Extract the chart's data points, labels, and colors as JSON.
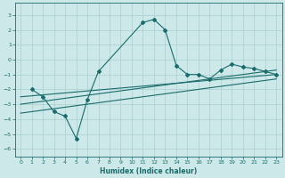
{
  "title": "",
  "xlabel": "Humidex (Indice chaleur)",
  "bg_color": "#cce8e8",
  "grid_color": "#aacfcf",
  "line_color": "#1a6b6b",
  "xlim": [
    -0.5,
    23.5
  ],
  "ylim": [
    -6.5,
    3.8
  ],
  "xticks": [
    0,
    1,
    2,
    3,
    4,
    5,
    6,
    7,
    8,
    9,
    10,
    11,
    12,
    13,
    14,
    15,
    16,
    17,
    18,
    19,
    20,
    21,
    22,
    23
  ],
  "yticks": [
    -6,
    -5,
    -4,
    -3,
    -2,
    -1,
    0,
    1,
    2,
    3
  ],
  "line1_x": [
    1,
    2,
    3,
    4,
    5,
    6,
    7,
    11,
    12,
    13,
    14,
    15,
    16,
    17,
    18,
    19,
    20,
    21,
    22,
    23
  ],
  "line1_y": [
    -2.0,
    -2.5,
    -3.5,
    -3.8,
    -5.3,
    -2.7,
    -0.8,
    2.5,
    2.7,
    2.0,
    -0.4,
    -1.0,
    -1.0,
    -1.3,
    -0.7,
    -0.3,
    -0.5,
    -0.6,
    -0.8,
    -1.0
  ],
  "line2_x": [
    0,
    23
  ],
  "line2_y": [
    -2.5,
    -1.0
  ],
  "line3_x": [
    0,
    23
  ],
  "line3_y": [
    -3.0,
    -0.7
  ],
  "line4_x": [
    0,
    23
  ],
  "line4_y": [
    -3.6,
    -1.3
  ]
}
